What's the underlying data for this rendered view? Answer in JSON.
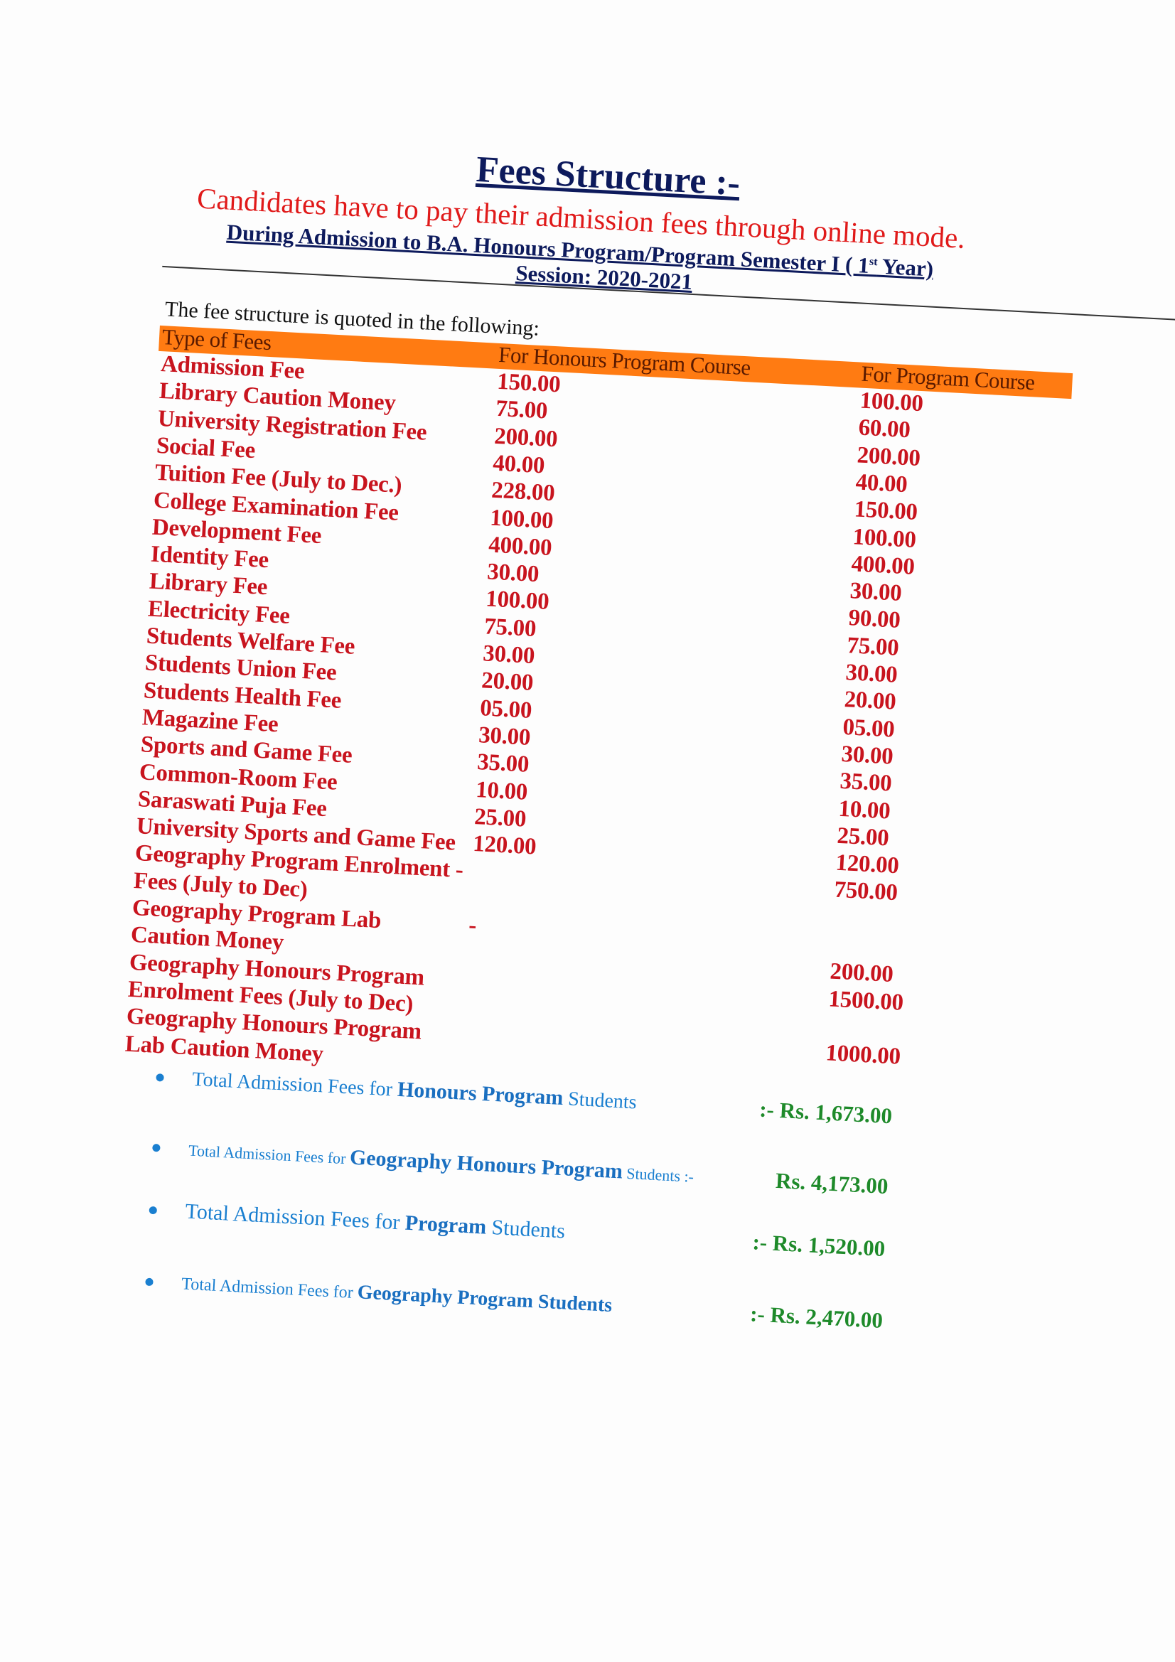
{
  "header": {
    "title": "Fees Structure :-",
    "online_notice": "Candidates have to pay their admission fees through online mode.",
    "during_pre": "During Admission to B.A. Honours Program/Program Semester I ( 1",
    "during_sup": "st",
    "during_post": " Year)",
    "session": "Session: 2020-2021"
  },
  "intro": "The fee structure is quoted in the following:",
  "table": {
    "columns": [
      "Type of Fees",
      "For Honours Program Course",
      "For Program Course"
    ],
    "header_color": "#ff7b12",
    "rows": [
      {
        "label": "Admission Fee",
        "honours": "150.00",
        "program": "100.00"
      },
      {
        "label": "Library Caution Money",
        "honours": "75.00",
        "program": "60.00"
      },
      {
        "label": "University Registration Fee",
        "honours": "200.00",
        "program": "200.00"
      },
      {
        "label": "Social Fee",
        "honours": "40.00",
        "program": "40.00"
      },
      {
        "label": "Tuition Fee (July to Dec.)",
        "honours": "228.00",
        "program": "150.00"
      },
      {
        "label": "College Examination Fee",
        "honours": "100.00",
        "program": "100.00"
      },
      {
        "label": "Development Fee",
        "honours": "400.00",
        "program": "400.00"
      },
      {
        "label": "Identity Fee",
        "honours": "30.00",
        "program": "30.00"
      },
      {
        "label": "Library Fee",
        "honours": "100.00",
        "program": "90.00"
      },
      {
        "label": "Electricity Fee",
        "honours": "75.00",
        "program": "75.00"
      },
      {
        "label": "Students Welfare Fee",
        "honours": "30.00",
        "program": "30.00"
      },
      {
        "label": "Students Union Fee",
        "honours": "20.00",
        "program": "20.00"
      },
      {
        "label": "Students Health Fee",
        "honours": "05.00",
        "program": "05.00"
      },
      {
        "label": "Magazine Fee",
        "honours": "30.00",
        "program": "30.00"
      },
      {
        "label": "Sports and Game Fee",
        "honours": "35.00",
        "program": "35.00"
      },
      {
        "label": "Common-Room Fee",
        "honours": "10.00",
        "program": "10.00"
      },
      {
        "label": "Saraswati Puja Fee",
        "honours": "25.00",
        "program": "25.00"
      },
      {
        "label": "University Sports and Game Fee",
        "honours": "120.00",
        "program": "120.00"
      },
      {
        "label": "Geography Program Enrolment -",
        "honours": "",
        "program": "750.00"
      },
      {
        "label": "Fees (July to Dec)",
        "honours": "",
        "program": ""
      },
      {
        "label": "Geography Program Lab",
        "honours": "-",
        "program": ""
      },
      {
        "label": "Caution Money",
        "honours": "",
        "program": "200.00"
      },
      {
        "label": "Geography Honours Program",
        "honours": "",
        "program": "1500.00"
      },
      {
        "label": "Enrolment Fees (July to Dec)",
        "honours": "",
        "program": ""
      },
      {
        "label": "Geography Honours Program",
        "honours": "",
        "program": "1000.00"
      },
      {
        "label": "Lab Caution Money",
        "honours": "",
        "program": ""
      }
    ]
  },
  "totals": [
    {
      "pre": "Total Admission Fees for ",
      "bold": "Honours Program",
      "post": " Students",
      "amount": ":- Rs. 1,673.00"
    },
    {
      "pre": "Total Admission Fees for ",
      "bold": "Geography Honours Program",
      "post": " Students :-",
      "amount": "Rs. 4,173.00"
    },
    {
      "pre": "Total Admission Fees for ",
      "bold": "Program",
      "post": " Students",
      "amount": ":- Rs. 1,520.00"
    },
    {
      "pre": "Total Admission Fees for ",
      "bold": "Geography Program Students",
      "post": "",
      "amount": ":- Rs. 2,470.00"
    }
  ],
  "colors": {
    "title": "#0d1a5c",
    "notice": "#e01a1a",
    "fees": "#c8141e",
    "totals_text": "#1a7fd0",
    "amount": "#1e8a2a"
  }
}
